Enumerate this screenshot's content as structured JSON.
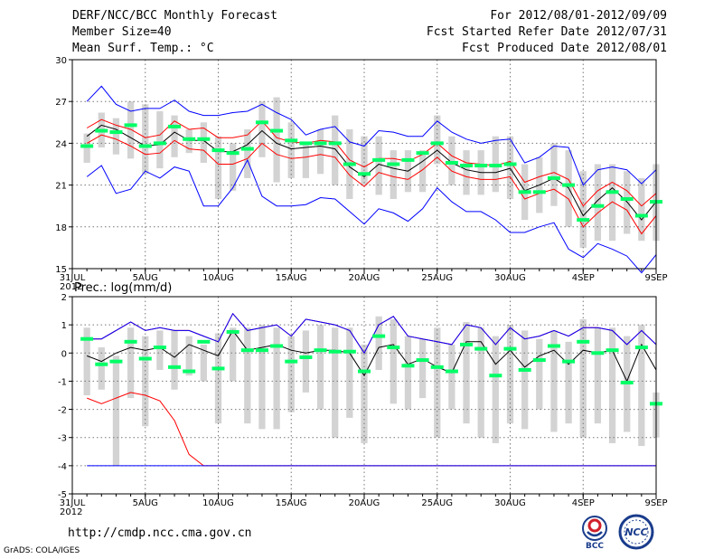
{
  "header": {
    "title": "DERF/NCC/BCC Monthly Forecast",
    "member_size": "Member Size=40",
    "variable": "Mean Surf. Temp.: °C",
    "period": "For 2012/08/01-2012/09/09",
    "refer_date": "Fcst Started Refer Date 2012/07/31",
    "produced_date": "Fcst Produced Date 2012/08/01"
  },
  "footer": {
    "url": "http://cmdp.ncc.cma.gov.cn",
    "credit": "GrADS: COLA/IGES",
    "logo_left": "BCC",
    "logo_right": "NCC"
  },
  "colors": {
    "box": "#d3d3d3",
    "mean": "#00ff66",
    "median": "#000000",
    "quartile": "#ff0000",
    "extreme": "#0000ff"
  },
  "chart_data": [
    {
      "type": "line",
      "title": "Mean Surf. Temp.: °C",
      "xlabel": "",
      "ylabel": "",
      "ylim": [
        15,
        30
      ],
      "yticks": [
        15,
        18,
        21,
        24,
        27,
        30
      ],
      "xticks": [
        {
          "day": 0,
          "label": "31JUL",
          "sub": "2012"
        },
        {
          "day": 5,
          "label": "5AUG",
          "sub": ""
        },
        {
          "day": 10,
          "label": "10AUG",
          "sub": ""
        },
        {
          "day": 15,
          "label": "15AUG",
          "sub": ""
        },
        {
          "day": 20,
          "label": "20AUG",
          "sub": ""
        },
        {
          "day": 25,
          "label": "25AUG",
          "sub": ""
        },
        {
          "day": 30,
          "label": "30AUG",
          "sub": ""
        },
        {
          "day": 35,
          "label": "4SEP",
          "sub": ""
        },
        {
          "day": 40,
          "label": "9SEP",
          "sub": ""
        }
      ],
      "x": [
        1,
        2,
        3,
        4,
        5,
        6,
        7,
        8,
        9,
        10,
        11,
        12,
        13,
        14,
        15,
        16,
        17,
        18,
        19,
        20,
        21,
        22,
        23,
        24,
        25,
        26,
        27,
        28,
        29,
        30,
        31,
        32,
        33,
        34,
        35,
        36,
        37,
        38,
        39,
        40
      ],
      "box_low": [
        22.6,
        23.7,
        23.2,
        22.9,
        21.8,
        22.2,
        23.0,
        23.3,
        22.6,
        20.0,
        20.6,
        21.5,
        23.0,
        21.2,
        21.5,
        21.5,
        21.8,
        21.0,
        20.0,
        21.0,
        20.3,
        20.0,
        20.5,
        20.5,
        22.5,
        21.0,
        20.3,
        20.3,
        20.5,
        20.0,
        18.5,
        19.0,
        19.5,
        18.0,
        16.5,
        17.0,
        17.0,
        17.5,
        17.0,
        17.0
      ],
      "box_high": [
        24.7,
        26.2,
        25.8,
        27.0,
        26.8,
        26.3,
        26.0,
        25.0,
        25.5,
        24.5,
        24.0,
        25.0,
        27.0,
        27.3,
        25.5,
        24.0,
        25.0,
        26.0,
        25.0,
        24.5,
        24.5,
        23.5,
        23.5,
        23.5,
        26.0,
        24.5,
        23.5,
        23.5,
        24.5,
        24.5,
        22.5,
        23.0,
        24.0,
        23.5,
        22.0,
        22.5,
        22.5,
        22.0,
        21.5,
        22.5
      ],
      "series": [
        {
          "name": "mean",
          "values": [
            23.8,
            24.9,
            24.8,
            25.3,
            23.8,
            24.0,
            25.2,
            24.3,
            24.3,
            23.5,
            23.3,
            23.6,
            25.5,
            24.9,
            24.2,
            24.0,
            24.0,
            24.0,
            22.5,
            21.8,
            22.8,
            22.5,
            22.8,
            23.3,
            24.0,
            22.6,
            22.4,
            22.4,
            22.4,
            22.5,
            20.5,
            20.5,
            21.5,
            21.0,
            18.5,
            19.5,
            20.5,
            20.0,
            18.8,
            19.8
          ]
        },
        {
          "name": "median",
          "values": [
            24.5,
            25.3,
            25.0,
            24.4,
            23.8,
            23.9,
            24.8,
            24.2,
            24.2,
            23.4,
            23.4,
            23.9,
            24.9,
            24.0,
            23.6,
            23.7,
            23.8,
            23.6,
            22.3,
            21.6,
            22.5,
            22.2,
            22.0,
            22.7,
            23.5,
            22.6,
            22.1,
            21.9,
            21.9,
            22.2,
            20.6,
            21.0,
            21.5,
            20.8,
            18.8,
            19.9,
            20.8,
            19.8,
            18.5,
            19.8
          ]
        },
        {
          "name": "quartile_upper",
          "values": [
            25.1,
            25.7,
            25.3,
            25.0,
            24.4,
            24.6,
            25.6,
            25.0,
            25.1,
            24.4,
            24.4,
            24.6,
            25.6,
            24.4,
            24.1,
            24.0,
            24.2,
            24.1,
            22.8,
            22.3,
            22.9,
            22.9,
            22.7,
            23.2,
            24.0,
            23.1,
            22.6,
            22.5,
            22.4,
            22.7,
            21.2,
            21.6,
            21.9,
            21.4,
            19.5,
            20.6,
            21.2,
            20.6,
            19.5,
            20.4
          ]
        },
        {
          "name": "quartile_lower",
          "values": [
            24.0,
            24.6,
            24.3,
            23.8,
            23.2,
            23.3,
            24.2,
            23.6,
            23.5,
            22.5,
            22.5,
            22.9,
            24.0,
            23.2,
            22.9,
            23.0,
            23.2,
            23.0,
            21.7,
            20.9,
            21.9,
            21.6,
            21.4,
            22.1,
            23.0,
            22.0,
            21.6,
            21.4,
            21.4,
            21.6,
            20.0,
            20.4,
            20.7,
            20.0,
            18.0,
            19.0,
            19.8,
            19.2,
            17.5,
            18.8
          ]
        },
        {
          "name": "maximum",
          "values": [
            27.0,
            28.1,
            26.8,
            26.3,
            26.5,
            26.5,
            27.1,
            26.3,
            26.0,
            26.0,
            26.2,
            26.3,
            26.8,
            26.2,
            25.7,
            24.6,
            25.0,
            25.2,
            24.1,
            23.8,
            24.9,
            24.8,
            24.5,
            24.5,
            25.6,
            24.8,
            24.3,
            24.0,
            24.2,
            24.3,
            22.6,
            23.0,
            23.8,
            23.7,
            21.0,
            22.1,
            22.3,
            22.1,
            21.1,
            22.1
          ]
        },
        {
          "name": "minimum",
          "values": [
            21.6,
            22.4,
            20.4,
            20.7,
            22.0,
            21.5,
            22.3,
            22.0,
            19.5,
            19.5,
            20.8,
            22.8,
            20.2,
            19.5,
            19.5,
            19.6,
            20.1,
            20.0,
            19.1,
            18.2,
            19.3,
            19.0,
            18.4,
            19.3,
            20.8,
            19.8,
            19.1,
            19.1,
            18.5,
            17.6,
            17.6,
            18.0,
            18.3,
            16.4,
            15.8,
            16.8,
            16.4,
            15.9,
            14.7,
            16.0
          ]
        }
      ]
    },
    {
      "type": "line",
      "title": "Prec.: log(mm/d)",
      "xlabel": "",
      "ylabel": "",
      "ylim": [
        -5,
        2
      ],
      "yticks": [
        -5,
        -4,
        -3,
        -2,
        -1,
        0,
        1,
        2
      ],
      "xticks": [
        {
          "day": 0,
          "label": "31JUL",
          "sub": "2012"
        },
        {
          "day": 5,
          "label": "5AUG",
          "sub": ""
        },
        {
          "day": 10,
          "label": "10AUG",
          "sub": ""
        },
        {
          "day": 15,
          "label": "15AUG",
          "sub": ""
        },
        {
          "day": 20,
          "label": "20AUG",
          "sub": ""
        },
        {
          "day": 25,
          "label": "25AUG",
          "sub": ""
        },
        {
          "day": 30,
          "label": "30AUG",
          "sub": ""
        },
        {
          "day": 35,
          "label": "4SEP",
          "sub": ""
        },
        {
          "day": 40,
          "label": "9SEP",
          "sub": ""
        }
      ],
      "x": [
        1,
        2,
        3,
        4,
        5,
        6,
        7,
        8,
        9,
        10,
        11,
        12,
        13,
        14,
        15,
        16,
        17,
        18,
        19,
        20,
        21,
        22,
        23,
        24,
        25,
        26,
        27,
        28,
        29,
        30,
        31,
        32,
        33,
        34,
        35,
        36,
        37,
        38,
        39,
        40
      ],
      "box_low": [
        -1.5,
        -1.3,
        -4.0,
        -1.6,
        -2.6,
        -0.6,
        -1.3,
        -0.8,
        -1.0,
        -2.5,
        -1.0,
        -2.5,
        -2.7,
        -2.7,
        -2.1,
        -1.4,
        -2.0,
        -3.0,
        -2.3,
        -3.2,
        -0.6,
        -1.8,
        -2.0,
        -1.6,
        -3.0,
        -2.0,
        -2.5,
        -3.0,
        -3.2,
        -2.5,
        -2.7,
        -2.0,
        -2.8,
        -2.5,
        -3.0,
        -2.5,
        -3.2,
        -2.8,
        -3.3,
        -3.0
      ],
      "box_high": [
        0.9,
        0.2,
        -0.1,
        0.9,
        0.6,
        0.8,
        0.8,
        0.6,
        0.3,
        0.7,
        0.9,
        0.9,
        1.0,
        0.9,
        0.6,
        0.8,
        1.0,
        0.9,
        0.9,
        0.3,
        1.3,
        1.2,
        0.6,
        0.5,
        0.9,
        0.3,
        1.1,
        0.9,
        0.6,
        1.0,
        0.8,
        0.5,
        0.8,
        0.4,
        1.2,
        0.9,
        0.9,
        0.6,
        1.0,
        -1.4
      ],
      "series": [
        {
          "name": "mean",
          "values": [
            0.5,
            -0.4,
            -0.3,
            0.4,
            -0.2,
            0.2,
            -0.5,
            -0.65,
            0.4,
            -0.55,
            0.75,
            0.1,
            0.1,
            0.25,
            -0.3,
            -0.15,
            0.1,
            0.05,
            0.05,
            -0.65,
            0.6,
            0.2,
            -0.45,
            -0.25,
            -0.5,
            -0.65,
            0.3,
            0.15,
            -0.8,
            0.15,
            -0.6,
            -0.25,
            0.25,
            -0.3,
            0.4,
            0.0,
            0.1,
            -1.05,
            0.2,
            -1.8
          ]
        },
        {
          "name": "median",
          "values": [
            -0.1,
            -0.3,
            0.0,
            0.2,
            0.1,
            0.2,
            -0.15,
            0.3,
            0.1,
            -0.1,
            0.8,
            0.1,
            0.2,
            0.3,
            0.1,
            0.0,
            0.1,
            0.1,
            0.0,
            -0.8,
            0.2,
            0.3,
            -0.4,
            -0.2,
            -0.5,
            -0.7,
            0.4,
            0.4,
            -0.4,
            0.1,
            -0.5,
            -0.1,
            0.1,
            -0.4,
            0.1,
            0.0,
            0.1,
            -1.0,
            0.3,
            -0.6
          ]
        },
        {
          "name": "quartile_upper",
          "values": [
            0.5,
            0.5,
            0.8,
            1.1,
            0.8,
            0.9,
            0.8,
            0.8,
            0.6,
            0.4,
            1.4,
            0.8,
            0.9,
            1.0,
            0.6,
            1.2,
            1.1,
            1.0,
            0.8,
            0.0,
            1.0,
            1.3,
            0.6,
            0.5,
            0.4,
            0.3,
            1.0,
            0.9,
            0.3,
            0.9,
            0.5,
            0.6,
            0.8,
            0.6,
            0.9,
            0.9,
            0.8,
            0.3,
            0.8,
            0.3
          ]
        },
        {
          "name": "quartile_lower",
          "values": [
            -1.6,
            -1.8,
            -1.6,
            -1.4,
            -1.5,
            -1.7,
            -2.4,
            -3.6,
            -4.0,
            -4.0,
            -4.0,
            -4.0,
            -4.0,
            -4.0,
            -4.0,
            -4.0,
            -4.0,
            -4.0,
            -4.0,
            -4.0,
            -4.0,
            -4.0,
            -4.0,
            -4.0,
            -4.0,
            -4.0,
            -4.0,
            -4.0,
            -4.0,
            -4.0,
            -4.0,
            -4.0,
            -4.0,
            -4.0,
            -4.0,
            -4.0,
            -4.0,
            -4.0,
            -4.0,
            -4.0
          ]
        },
        {
          "name": "maximum",
          "values": [
            -4.0,
            -4.0,
            -4.0,
            -4.0,
            -4.0,
            -4.0,
            -4.0,
            -4.0,
            -4.0,
            -4.0,
            -4.0,
            -4.0,
            -4.0,
            -4.0,
            -4.0,
            -4.0,
            -4.0,
            -4.0,
            -4.0,
            -4.0,
            -4.0,
            -4.0,
            -4.0,
            -4.0,
            -4.0,
            -4.0,
            -4.0,
            -4.0,
            -4.0,
            -4.0,
            -4.0,
            -4.0,
            -4.0,
            -4.0,
            -4.0,
            -4.0,
            -4.0,
            -4.0,
            -4.0,
            -4.0
          ]
        },
        {
          "name": "minimum",
          "values": [
            0.5,
            0.5,
            0.8,
            1.1,
            0.8,
            0.9,
            0.8,
            0.8,
            0.6,
            0.4,
            1.4,
            0.8,
            0.9,
            1.0,
            0.6,
            1.2,
            1.1,
            1.0,
            0.8,
            0.0,
            1.0,
            1.3,
            0.6,
            0.5,
            0.4,
            0.3,
            1.0,
            0.9,
            0.3,
            0.9,
            0.5,
            0.6,
            0.8,
            0.6,
            0.9,
            0.9,
            0.8,
            0.3,
            0.8,
            0.3
          ]
        }
      ]
    }
  ]
}
